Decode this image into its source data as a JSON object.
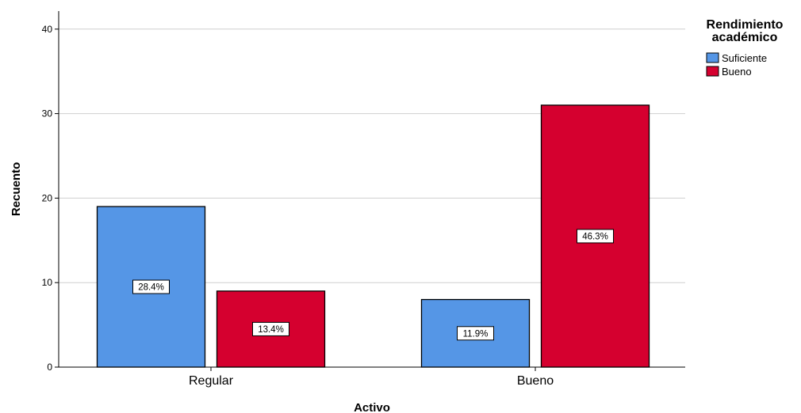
{
  "chart_data": {
    "type": "bar",
    "categories": [
      "Regular",
      "Bueno"
    ],
    "series": [
      {
        "name": "Suficiente",
        "color": "#5596e6",
        "values": [
          19,
          8
        ],
        "labels": [
          "28.4%",
          "11.9%"
        ]
      },
      {
        "name": "Bueno",
        "color": "#d5002f",
        "values": [
          9,
          31
        ],
        "labels": [
          "13.4%",
          "46.3%"
        ]
      }
    ],
    "xlabel": "Activo",
    "ylabel": "Recuento",
    "ylim": [
      0,
      42
    ],
    "yticks": [
      0,
      10,
      20,
      30,
      40
    ],
    "grid": true,
    "legend": {
      "title_lines": [
        "Rendimiento",
        "académico"
      ],
      "placement": "top-right"
    }
  }
}
